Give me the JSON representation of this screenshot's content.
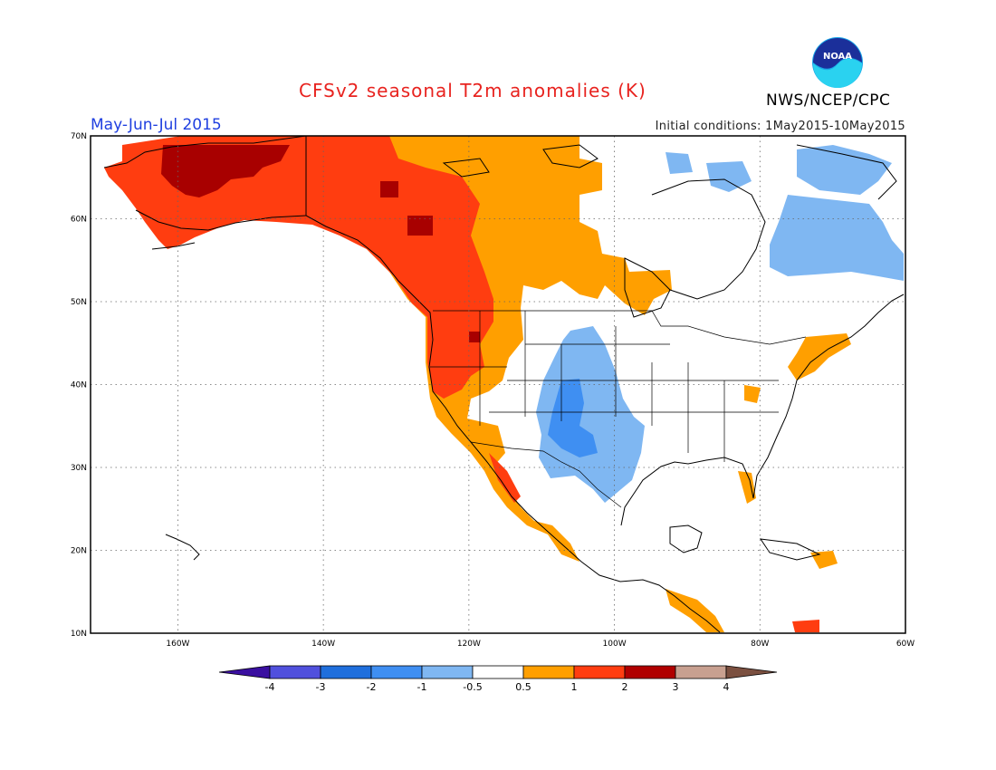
{
  "header": {
    "title": "CFSv2 seasonal T2m anomalies (K)",
    "organization": "NWS/NCEP/CPC",
    "logo_text": "NOAA",
    "period": "May-Jun-Jul 2015",
    "initial_conditions": "Initial conditions: 1May2015-10May2015"
  },
  "axes": {
    "lat_labels": [
      "70N",
      "60N",
      "50N",
      "40N",
      "30N",
      "20N",
      "10N"
    ],
    "lon_labels": [
      "160W",
      "140W",
      "120W",
      "100W",
      "80W",
      "60W"
    ],
    "lon_range": [
      -172,
      -60
    ],
    "lat_range": [
      10,
      70
    ]
  },
  "colorbar": {
    "tick_labels": [
      "-4",
      "-3",
      "-2",
      "-1",
      "-0.5",
      "0.5",
      "1",
      "2",
      "3",
      "4"
    ],
    "colors": [
      "#3a0fa0",
      "#5050dd",
      "#1f6fdd",
      "#3f8ff2",
      "#7fb7f2",
      "#ffffff",
      "#ff9f00",
      "#ff3d10",
      "#b00000",
      "#c8a090",
      "#7b5040"
    ]
  },
  "regions": [
    {
      "name": "alaska-canada-warm",
      "level": "1 to 2"
    },
    {
      "name": "alaska-core-warm",
      "level": "2 to 3"
    },
    {
      "name": "rockies-plains-cool",
      "level": "-1 to -0.5"
    },
    {
      "name": "eastern-canada-cool",
      "level": "-1 to -0.5"
    },
    {
      "name": "canada-interior-warm",
      "level": "0.5 to 1"
    }
  ]
}
